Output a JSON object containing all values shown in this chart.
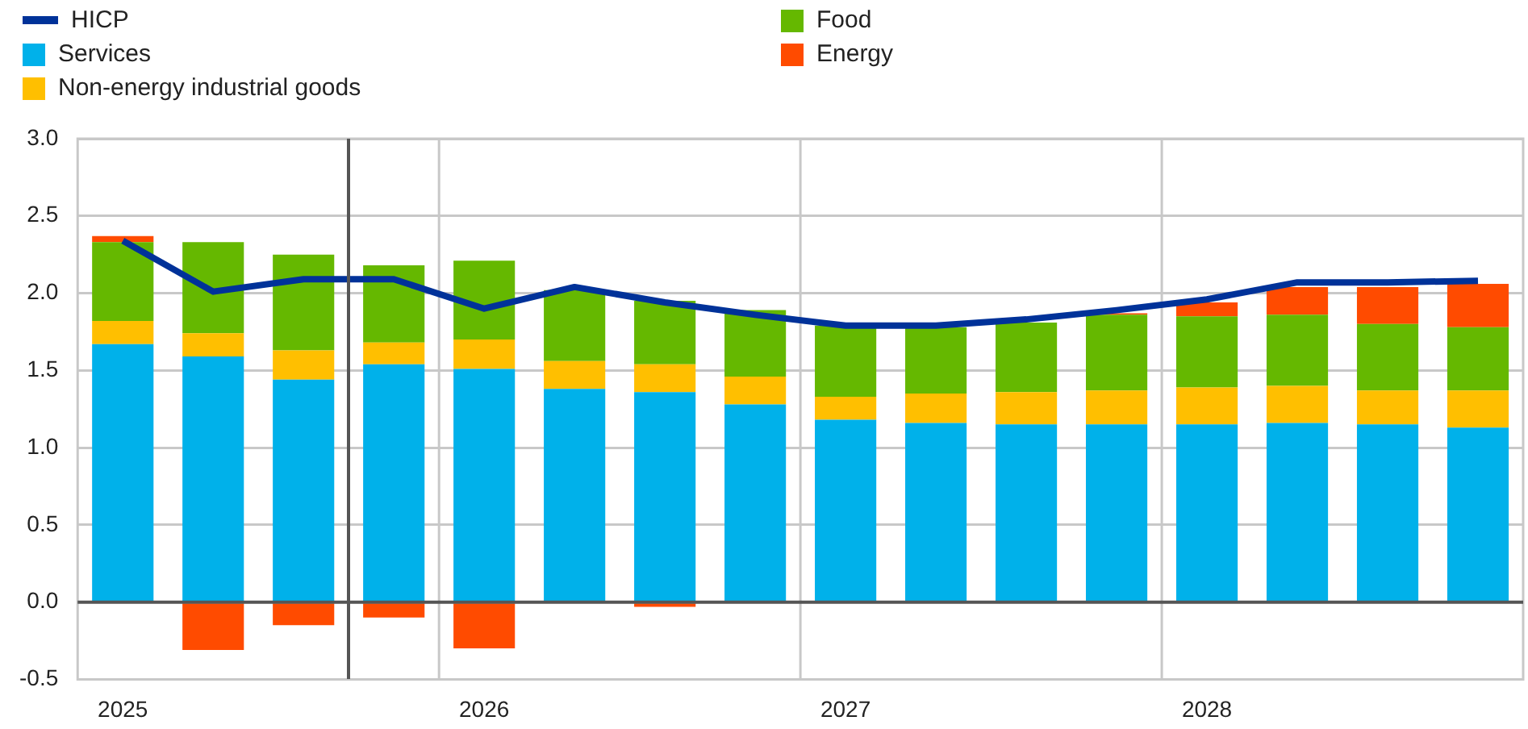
{
  "chart_data": {
    "type": "bar",
    "stacked": true,
    "legend": "top left",
    "grid": true,
    "categories": [
      "2025",
      null,
      null,
      null,
      "2026",
      null,
      null,
      null,
      "2027",
      null,
      null,
      null,
      "2028",
      null,
      null,
      null
    ],
    "ylim": [
      -0.5,
      3.0
    ],
    "yticks": [
      {
        "value": -0.5,
        "label": "-0.5"
      },
      {
        "value": 0,
        "label": "0.0"
      },
      {
        "value": 0.5,
        "label": "0.5"
      },
      {
        "value": 1,
        "label": "1.0"
      },
      {
        "value": 1.5,
        "label": "1.5"
      },
      {
        "value": 2,
        "label": "2.0"
      },
      {
        "value": 2.5,
        "label": "2.5"
      },
      {
        "value": 3,
        "label": "3.0"
      }
    ],
    "series": [
      {
        "name": "HICP",
        "type": "line",
        "color": "#003299",
        "values": [
          2.34,
          2.01,
          2.09,
          2.09,
          1.9,
          2.04,
          1.94,
          1.86,
          1.79,
          1.79,
          1.83,
          1.89,
          1.96,
          2.07,
          2.07,
          2.08
        ]
      },
      {
        "name": "Services",
        "color": "#00b1ea",
        "values": [
          1.67,
          1.59,
          1.44,
          1.54,
          1.51,
          1.38,
          1.36,
          1.28,
          1.18,
          1.16,
          1.15,
          1.15,
          1.15,
          1.16,
          1.15,
          1.13
        ]
      },
      {
        "name": "Non-energy industrial goods",
        "color": "#ffbf00",
        "values": [
          0.15,
          0.15,
          0.19,
          0.14,
          0.19,
          0.18,
          0.18,
          0.18,
          0.15,
          0.19,
          0.21,
          0.22,
          0.24,
          0.24,
          0.22,
          0.24
        ]
      },
      {
        "name": "Food",
        "color": "#65b800",
        "values": [
          0.51,
          0.59,
          0.62,
          0.5,
          0.51,
          0.46,
          0.41,
          0.43,
          0.46,
          0.43,
          0.45,
          0.49,
          0.46,
          0.46,
          0.43,
          0.41
        ]
      },
      {
        "name": "Energy",
        "color": "#ff4b00",
        "values": [
          0.04,
          -0.31,
          -0.15,
          -0.1,
          -0.3,
          null,
          -0.03,
          null,
          null,
          0,
          0,
          0.01,
          0.09,
          0.18,
          0.24,
          0.28
        ]
      }
    ]
  }
}
